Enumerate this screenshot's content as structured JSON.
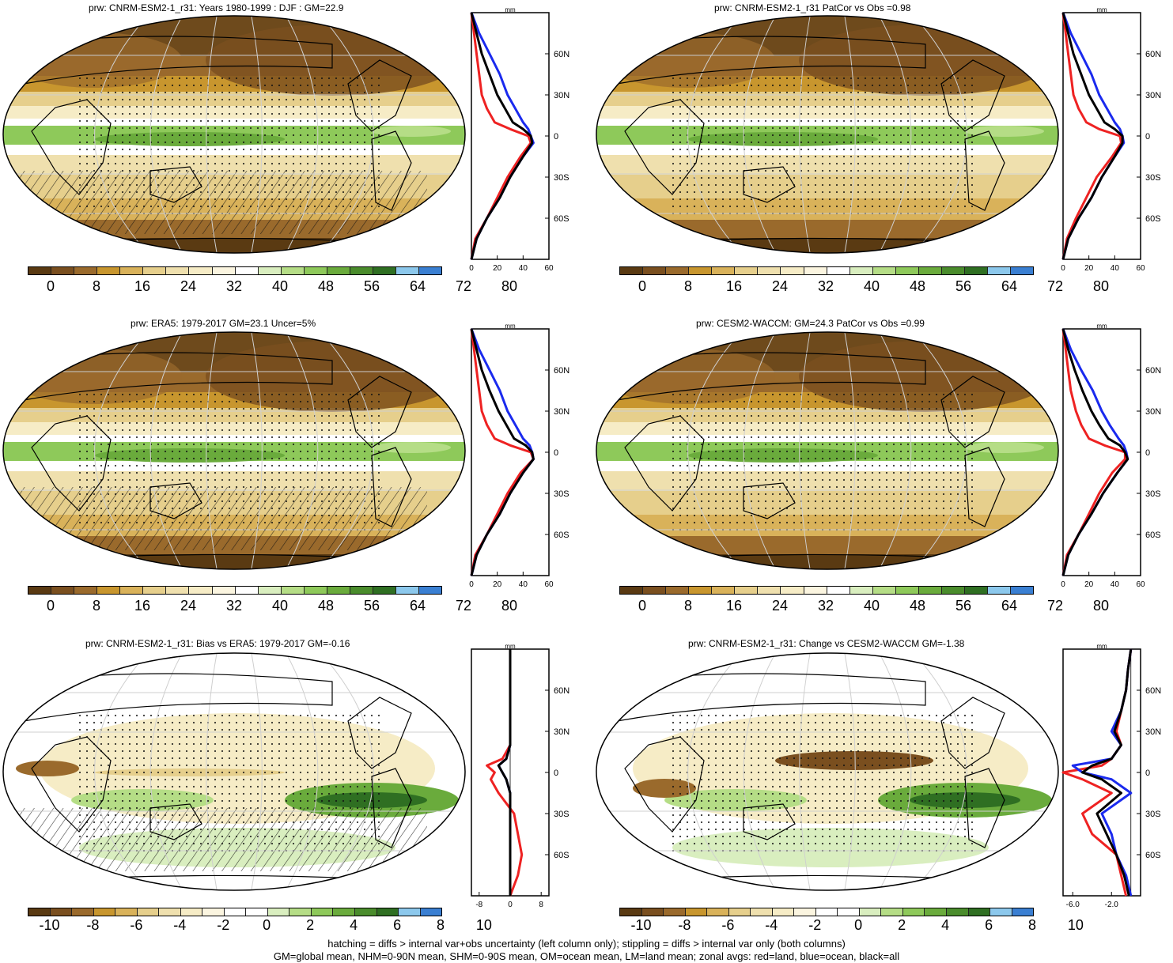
{
  "colors": {
    "absolute": [
      "#5a3a12",
      "#7a4f1f",
      "#9a6a2c",
      "#c8962e",
      "#d9b25a",
      "#e6cf8c",
      "#efe0ae",
      "#f6ecc6",
      "#fbf5e0",
      "#ffffff",
      "#d9eebf",
      "#b5dd86",
      "#8ec95a",
      "#6aab3c",
      "#4a8c2c",
      "#2f6f22",
      "#8cc8ec",
      "#3a7fd2"
    ],
    "diff": [
      "#5a3a12",
      "#7a4f1f",
      "#9a6a2c",
      "#c8962e",
      "#d9b25a",
      "#e6cf8c",
      "#efe0ae",
      "#f6ecc6",
      "#fbf5e0",
      "#ffffff",
      "#ffffff",
      "#d9eebf",
      "#b5dd86",
      "#8ec95a",
      "#6aab3c",
      "#4a8c2c",
      "#2f6f22",
      "#8cc8ec",
      "#3a7fd2"
    ],
    "land": "#ee2222",
    "ocean": "#1a2aee",
    "all": "#000000"
  },
  "panels": [
    {
      "id": "p1",
      "title": "prw: CNRM-ESM2-1_r31: Years 1980-1999 : DJF : GM=22.9",
      "kind": "absolute",
      "hatch": true,
      "stipple": true
    },
    {
      "id": "p2",
      "title": "prw: CNRM-ESM2-1_r31 PatCor vs Obs =0.98",
      "kind": "absolute",
      "hatch": false,
      "stipple": true
    },
    {
      "id": "p3",
      "title": "prw: ERA5: 1979-2017 GM=23.1 Uncer=5%",
      "kind": "absolute",
      "hatch": true,
      "stipple": true
    },
    {
      "id": "p4",
      "title": "prw: CESM2-WACCM: GM=24.3 PatCor vs Obs =0.99",
      "kind": "absolute",
      "hatch": false,
      "stipple": true
    },
    {
      "id": "p5",
      "title": "prw: CNRM-ESM2-1_r31: Bias vs ERA5: 1979-2017 GM=-0.16",
      "kind": "diff",
      "hatch": true,
      "stipple": true
    },
    {
      "id": "p6",
      "title": "prw: CNRM-ESM2-1_r31: Change vs CESM2-WACCM GM=-1.38",
      "kind": "diff",
      "hatch": false,
      "stipple": true
    }
  ],
  "colorbars": {
    "absolute": {
      "labels": [
        "0",
        "8",
        "16",
        "24",
        "32",
        "40",
        "48",
        "56",
        "64",
        "72",
        "80"
      ]
    },
    "diff": {
      "labels": [
        "-10",
        "-8",
        "-6",
        "-4",
        "-2",
        "0",
        "2",
        "4",
        "6",
        "8",
        "10"
      ]
    }
  },
  "zonal": {
    "unit_label": "mm",
    "lat_ticks": [
      "60N",
      "30N",
      "0",
      "30S",
      "60S"
    ],
    "absolute_xticks": [
      "0",
      "20",
      "40",
      "60"
    ],
    "bias_xticks": [
      "-8",
      "0",
      "8"
    ],
    "change_xticks": [
      "-6.0",
      "-2.0"
    ]
  },
  "chart_data": [
    {
      "type": "line",
      "title": "prw: CNRM-ESM2-1_r31: Years 1980-1999 : DJF : GM=22.9",
      "xlabel": "mm",
      "xlim": [
        0,
        60
      ],
      "ylim": [
        -90,
        90
      ],
      "y": [
        -90,
        -75,
        -60,
        -45,
        -30,
        -15,
        -5,
        0,
        5,
        10,
        20,
        30,
        45,
        60,
        75,
        90
      ],
      "series": [
        {
          "name": "land",
          "values": [
            0,
            3,
            12,
            20,
            28,
            38,
            46,
            44,
            30,
            18,
            12,
            8,
            6,
            4,
            2,
            0
          ]
        },
        {
          "name": "ocean",
          "values": [
            0,
            4,
            12,
            22,
            30,
            40,
            48,
            46,
            44,
            40,
            34,
            28,
            22,
            14,
            6,
            0
          ]
        },
        {
          "name": "all",
          "values": [
            0,
            4,
            12,
            22,
            30,
            40,
            47,
            46,
            40,
            32,
            26,
            20,
            14,
            8,
            4,
            0
          ]
        }
      ]
    },
    {
      "type": "line",
      "title": "prw: CNRM-ESM2-1_r31 PatCor vs Obs =0.98",
      "xlabel": "mm",
      "xlim": [
        0,
        60
      ],
      "ylim": [
        -90,
        90
      ],
      "y": [
        -90,
        -75,
        -60,
        -45,
        -30,
        -15,
        -5,
        0,
        5,
        10,
        20,
        30,
        45,
        60,
        75,
        90
      ],
      "series": [
        {
          "name": "land",
          "values": [
            0,
            3,
            10,
            18,
            26,
            38,
            45,
            44,
            28,
            18,
            12,
            8,
            6,
            4,
            2,
            0
          ]
        },
        {
          "name": "ocean",
          "values": [
            0,
            4,
            12,
            22,
            30,
            40,
            47,
            46,
            44,
            40,
            34,
            28,
            22,
            14,
            6,
            0
          ]
        },
        {
          "name": "all",
          "values": [
            0,
            4,
            12,
            22,
            30,
            40,
            46,
            46,
            40,
            32,
            26,
            20,
            14,
            8,
            4,
            0
          ]
        }
      ]
    },
    {
      "type": "line",
      "title": "prw: ERA5: 1979-2017 GM=23.1 Uncer=5%",
      "xlabel": "mm",
      "xlim": [
        0,
        60
      ],
      "ylim": [
        -90,
        90
      ],
      "y": [
        -90,
        -75,
        -60,
        -45,
        -30,
        -15,
        -5,
        0,
        5,
        10,
        20,
        30,
        45,
        60,
        75,
        90
      ],
      "series": [
        {
          "name": "land",
          "values": [
            0,
            3,
            12,
            20,
            28,
            38,
            48,
            46,
            30,
            18,
            12,
            8,
            6,
            4,
            2,
            0
          ]
        },
        {
          "name": "ocean",
          "values": [
            0,
            4,
            12,
            22,
            30,
            40,
            48,
            47,
            45,
            40,
            34,
            28,
            22,
            14,
            6,
            0
          ]
        },
        {
          "name": "all",
          "values": [
            0,
            4,
            12,
            22,
            30,
            40,
            48,
            47,
            42,
            33,
            27,
            21,
            14,
            8,
            4,
            0
          ]
        }
      ]
    },
    {
      "type": "line",
      "title": "prw: CESM2-WACCM: GM=24.3 PatCor vs Obs =0.99",
      "xlabel": "mm",
      "xlim": [
        0,
        60
      ],
      "ylim": [
        -90,
        90
      ],
      "y": [
        -90,
        -75,
        -60,
        -45,
        -30,
        -15,
        -5,
        0,
        5,
        10,
        20,
        30,
        45,
        60,
        75,
        90
      ],
      "series": [
        {
          "name": "land",
          "values": [
            0,
            3,
            12,
            20,
            28,
            38,
            48,
            48,
            32,
            20,
            14,
            10,
            6,
            4,
            2,
            0
          ]
        },
        {
          "name": "ocean",
          "values": [
            0,
            4,
            12,
            22,
            31,
            42,
            50,
            49,
            47,
            43,
            36,
            30,
            23,
            14,
            6,
            0
          ]
        },
        {
          "name": "all",
          "values": [
            0,
            4,
            12,
            22,
            31,
            42,
            50,
            48,
            44,
            35,
            28,
            22,
            15,
            9,
            4,
            0
          ]
        }
      ]
    },
    {
      "type": "line",
      "title": "prw: CNRM-ESM2-1_r31: Bias vs ERA5: 1979-2017 GM=-0.16",
      "xlabel": "mm",
      "xlim": [
        -10,
        10
      ],
      "ylim": [
        -90,
        90
      ],
      "y": [
        -90,
        -75,
        -60,
        -45,
        -30,
        -15,
        -5,
        0,
        5,
        10,
        20,
        30,
        45,
        60,
        75,
        90
      ],
      "series": [
        {
          "name": "land",
          "values": [
            0,
            2,
            3,
            2,
            1,
            -3,
            -5,
            -4,
            -6,
            -2,
            0,
            0,
            0,
            0,
            0,
            0
          ]
        },
        {
          "name": "ocean",
          "values": [
            0,
            0,
            0,
            0,
            0,
            0,
            -1,
            -2,
            -3,
            -1,
            0,
            0,
            0,
            0,
            0,
            0
          ]
        },
        {
          "name": "all",
          "values": [
            0,
            0,
            0,
            0,
            0,
            0,
            -1,
            -2,
            -3,
            -1,
            0,
            0,
            0,
            0,
            0,
            0
          ]
        }
      ]
    },
    {
      "type": "line",
      "title": "prw: CNRM-ESM2-1_r31: Change vs CESM2-WACCM GM=-1.38",
      "xlabel": "mm",
      "xlim": [
        -7,
        1
      ],
      "ylim": [
        -90,
        90
      ],
      "y": [
        -90,
        -75,
        -60,
        -45,
        -30,
        -15,
        -5,
        0,
        5,
        10,
        20,
        30,
        45,
        60,
        75,
        90
      ],
      "series": [
        {
          "name": "land",
          "values": [
            -0.5,
            -1,
            -1.5,
            -4,
            -5,
            -2,
            -5,
            -7,
            -3,
            -2,
            -1,
            -1.5,
            -1,
            -0.5,
            -0.3,
            0
          ]
        },
        {
          "name": "ocean",
          "values": [
            0,
            -0.5,
            -1.5,
            -2,
            -3,
            0,
            -2,
            -5,
            -6,
            -2,
            -1,
            -2,
            -1,
            -0.5,
            -0.3,
            0
          ]
        },
        {
          "name": "all",
          "values": [
            -0.2,
            -0.7,
            -1.5,
            -2.5,
            -3.5,
            -1,
            -3,
            -5,
            -4,
            -2,
            -1,
            -1.7,
            -1,
            -0.5,
            -0.3,
            0
          ]
        }
      ]
    }
  ],
  "footer": {
    "line1": "hatching = diffs > internal var+obs uncertainty (left column only); stippling = diffs > internal var only (both columns)",
    "line2": "GM=global mean, NHM=0-90N mean, SHM=0-90S mean, OM=ocean mean, LM=land mean; zonal avgs: red=land, blue=ocean, black=all"
  }
}
